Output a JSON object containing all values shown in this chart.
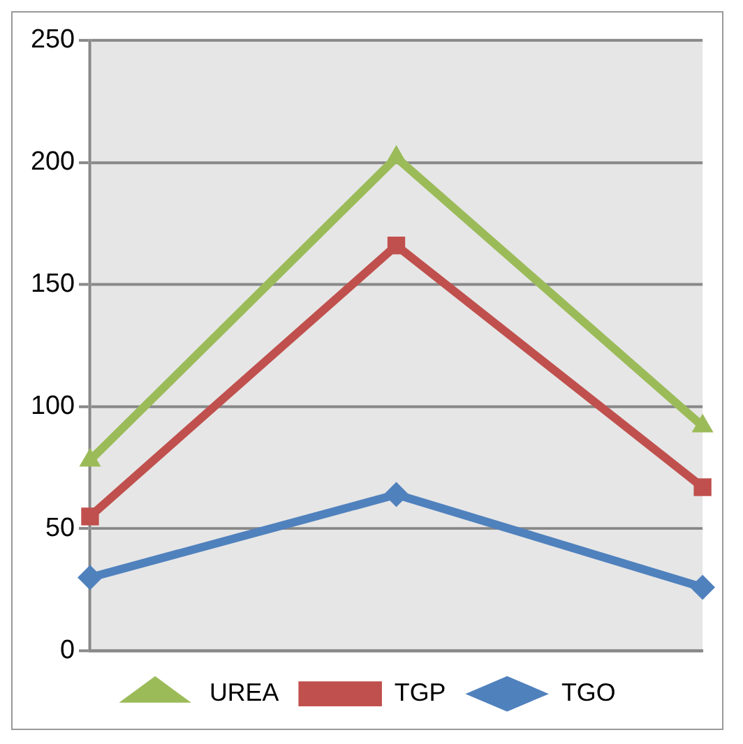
{
  "chart_data": {
    "type": "line",
    "categories": [
      null,
      null,
      null
    ],
    "series": [
      {
        "name": "UREA",
        "color": "#9bbb59",
        "marker": "triangle",
        "values": [
          78,
          202,
          92
        ]
      },
      {
        "name": "TGP",
        "color": "#c0504d",
        "marker": "square",
        "values": [
          55,
          166,
          67
        ]
      },
      {
        "name": "TGO",
        "color": "#4f81bd",
        "marker": "diamond",
        "values": [
          30,
          64,
          26
        ]
      }
    ],
    "ylim": [
      0,
      250
    ],
    "yticks": [
      0,
      50,
      100,
      150,
      200,
      250
    ],
    "grid": "y",
    "legend": "bottom",
    "line_style": "solid",
    "tick_labels": "y"
  }
}
